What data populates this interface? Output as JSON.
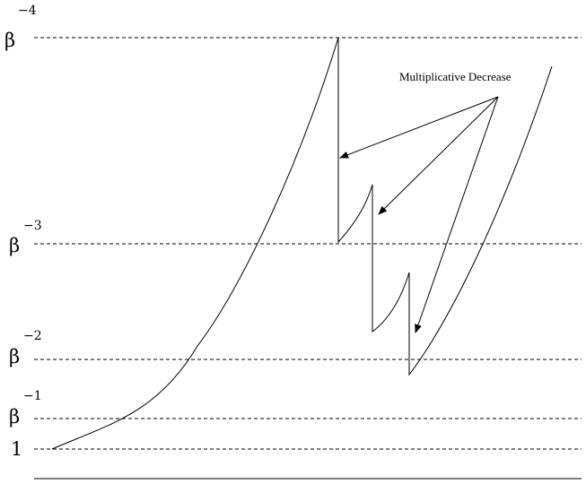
{
  "levels": [
    {
      "base": "β",
      "exponent": "−4"
    },
    {
      "base": "β",
      "exponent": "−3"
    },
    {
      "base": "β",
      "exponent": "−2"
    },
    {
      "base": "β",
      "exponent": "−1"
    },
    {
      "base": "1",
      "exponent": ""
    }
  ],
  "annotation": {
    "label": "Multiplicative Decrease",
    "arrow_count": 3
  }
}
